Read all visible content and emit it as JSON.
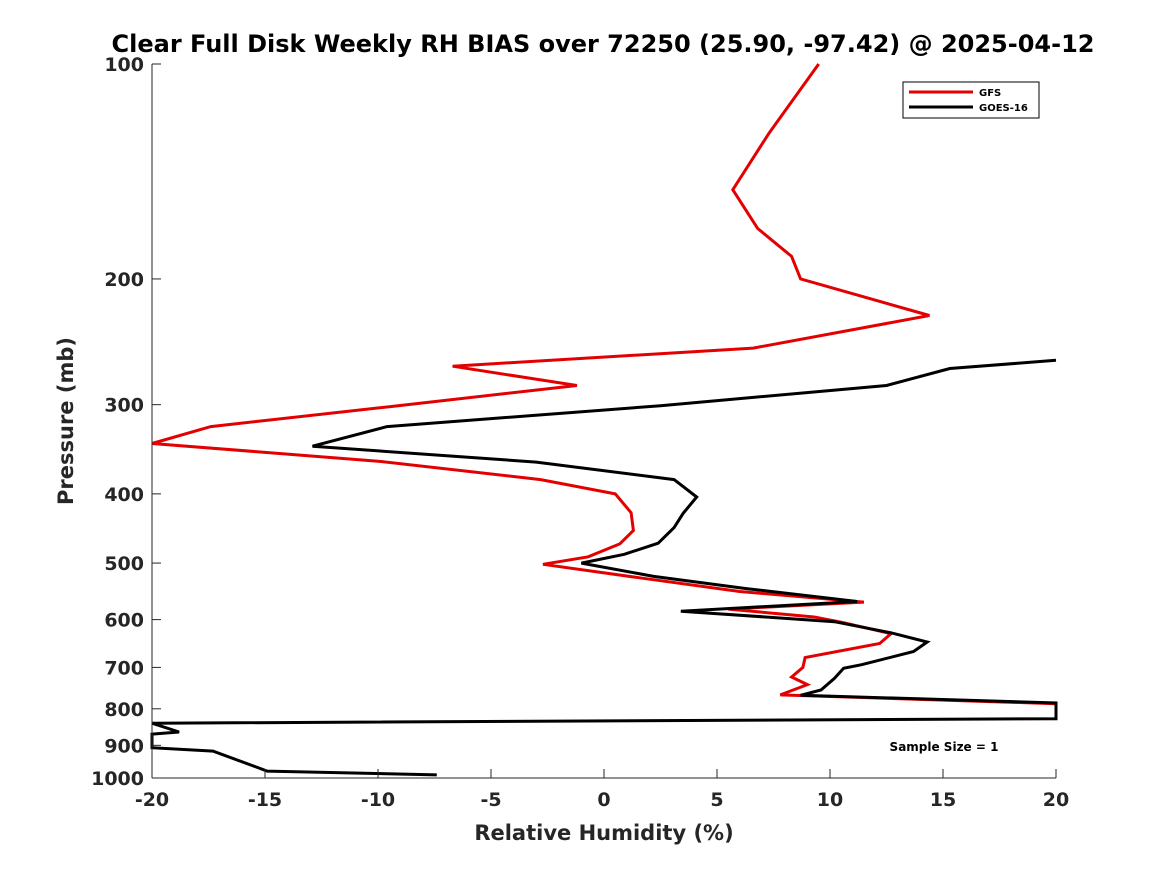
{
  "chart_data": {
    "type": "line",
    "title": "Clear Full Disk Weekly RH BIAS over 72250 (25.90, -97.42) @ 2025-04-12",
    "xlabel": "Relative Humidity (%)",
    "ylabel": "Pressure (mb)",
    "xlim": [
      -20,
      20
    ],
    "ylim": [
      100,
      1000
    ],
    "yscale": "log",
    "xticks": [
      -20,
      -15,
      -10,
      -5,
      0,
      5,
      10,
      15,
      20
    ],
    "yticks": [
      100,
      200,
      300,
      400,
      500,
      600,
      700,
      800,
      900,
      1000
    ],
    "legend_position": "top-right",
    "annotation": "Sample Size = 1",
    "series": [
      {
        "name": "GFS",
        "color": "#e30000",
        "points": [
          [
            9.5,
            100
          ],
          [
            7.3,
            125
          ],
          [
            5.7,
            150
          ],
          [
            6.8,
            170
          ],
          [
            8.3,
            186
          ],
          [
            8.7,
            200
          ],
          [
            14.4,
            225
          ],
          [
            6.6,
            250
          ],
          [
            -6.7,
            265
          ],
          [
            -1.2,
            282
          ],
          [
            -9.5,
            302
          ],
          [
            -17.4,
            322
          ],
          [
            -20,
            340
          ],
          [
            -10,
            360
          ],
          [
            -2.8,
            382
          ],
          [
            0.5,
            400
          ],
          [
            1.2,
            425
          ],
          [
            1.3,
            450
          ],
          [
            0.7,
            470
          ],
          [
            -0.7,
            490
          ],
          [
            -2.7,
            502
          ],
          [
            1.7,
            525
          ],
          [
            6.0,
            548
          ],
          [
            11.5,
            567
          ],
          [
            5.5,
            580
          ],
          [
            9.3,
            595
          ],
          [
            10.5,
            605
          ],
          [
            12.7,
            628
          ],
          [
            12.2,
            648
          ],
          [
            8.9,
            678
          ],
          [
            8.8,
            700
          ],
          [
            8.3,
            722
          ],
          [
            9.0,
            740
          ],
          [
            7.8,
            765
          ],
          [
            20,
            787
          ]
        ]
      },
      {
        "name": "GOES-16",
        "color": "#000000",
        "points": [
          [
            20,
            260
          ],
          [
            15.3,
            267
          ],
          [
            12.5,
            282
          ],
          [
            2.5,
            301
          ],
          [
            -9.6,
            322
          ],
          [
            -12.9,
            343
          ],
          [
            -3,
            361
          ],
          [
            3.1,
            382
          ],
          [
            4.1,
            404
          ],
          [
            3.5,
            426
          ],
          [
            3.1,
            446
          ],
          [
            2.4,
            469
          ],
          [
            0.9,
            486
          ],
          [
            -1,
            500
          ],
          [
            2.2,
            522
          ],
          [
            6.3,
            543
          ],
          [
            11.2,
            566
          ],
          [
            3.4,
            584
          ],
          [
            10.2,
            604
          ],
          [
            12.7,
            626
          ],
          [
            14.3,
            645
          ],
          [
            13.7,
            665
          ],
          [
            11.4,
            694
          ],
          [
            10.6,
            702
          ],
          [
            10.2,
            725
          ],
          [
            9.6,
            753
          ],
          [
            8.7,
            766
          ],
          [
            20,
            785
          ],
          [
            20,
            826
          ],
          [
            -20,
            838
          ],
          [
            -18.8,
            862
          ],
          [
            -20,
            868
          ],
          [
            -20,
            907
          ],
          [
            -17.3,
            917
          ],
          [
            -14.9,
            978
          ],
          [
            -7.4,
            990
          ]
        ]
      }
    ]
  }
}
